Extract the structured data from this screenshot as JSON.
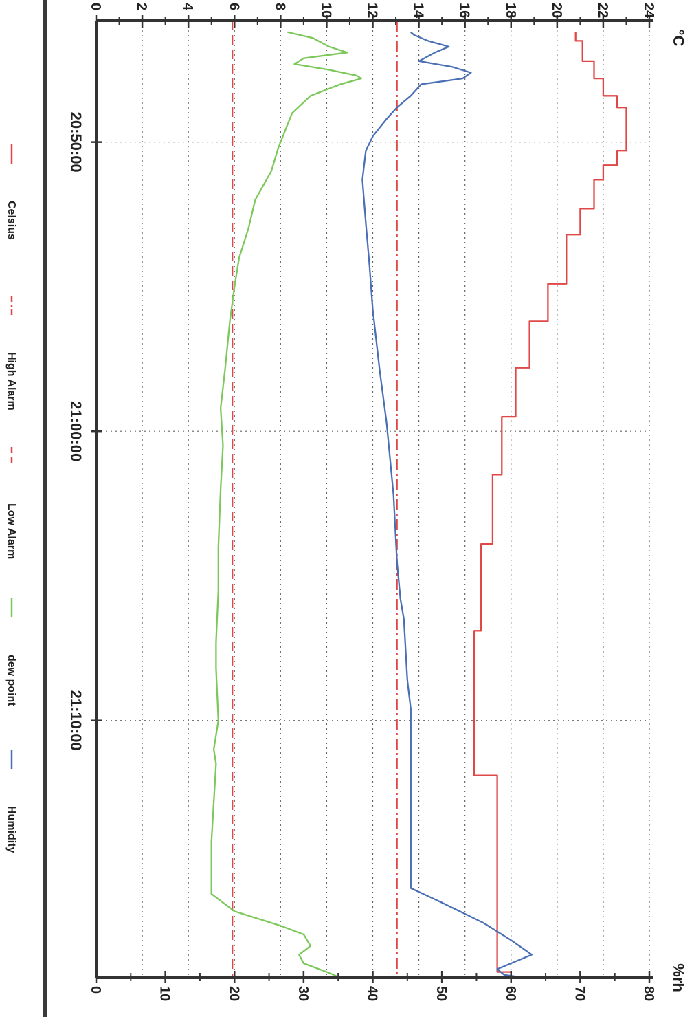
{
  "chart_data": {
    "type": "line",
    "title": "",
    "orientation": "rotated-90-clockwise",
    "x_axis": {
      "type": "time",
      "ticks": [
        "20:50:00",
        "21:00:00",
        "21:10:00"
      ],
      "range_minutes": [
        -4.2,
        28.9
      ],
      "grid": true
    },
    "y_left": {
      "unit": "°C",
      "range": [
        0,
        24
      ],
      "ticks": [
        0,
        2,
        4,
        6,
        8,
        10,
        12,
        14,
        16,
        18,
        20,
        22,
        24
      ],
      "grid": true
    },
    "y_right": {
      "unit": "%rh",
      "range": [
        0,
        80
      ],
      "ticks": [
        0,
        10,
        20,
        30,
        40,
        50,
        60,
        70,
        80
      ]
    },
    "legend": {
      "placement": "bottom",
      "items": [
        {
          "label": "Celsius",
          "style": "solid",
          "color": "#e04848"
        },
        {
          "label": "High Alarm",
          "style": "dash-dot",
          "color": "#e04848"
        },
        {
          "label": "Low Alarm",
          "style": "dashed",
          "color": "#e04848"
        },
        {
          "label": "dew point",
          "style": "solid",
          "color": "#7cc85a"
        },
        {
          "label": "Humidity",
          "style": "solid",
          "color": "#4a6fb5"
        }
      ]
    },
    "reference_lines": [
      {
        "name": "High Alarm",
        "axis": "right",
        "value": 43.5
      },
      {
        "name": "Low Alarm",
        "axis": "right",
        "value": 19.7
      }
    ],
    "series": [
      {
        "name": "Celsius",
        "axis": "left",
        "step": true,
        "minutes": [
          -3.8,
          -3.5,
          -2.8,
          -2.2,
          -1.6,
          -1.2,
          -0.5,
          0.3,
          0.8,
          1.3,
          2.3,
          3.2,
          4.9,
          6.2,
          7.8,
          9.5,
          11.5,
          13.9,
          16.9,
          20.7,
          21.9,
          28.7
        ],
        "celsius": [
          20.8,
          21.1,
          21.6,
          22.0,
          22.6,
          23.0,
          23.0,
          22.6,
          22.0,
          21.6,
          21.0,
          20.4,
          19.6,
          18.8,
          18.2,
          17.6,
          17.2,
          16.7,
          16.4,
          16.4,
          17.4,
          18.0
        ]
      },
      {
        "name": "Humidity",
        "axis": "right",
        "minutes": [
          -3.8,
          -3.7,
          -3.5,
          -3.3,
          -3.1,
          -2.8,
          -2.6,
          -2.4,
          -2.2,
          -2.0,
          -1.6,
          -1.2,
          -0.8,
          -0.2,
          0.3,
          1.3,
          2.8,
          4.2,
          5.8,
          7.9,
          9.7,
          12.2,
          14.5,
          15.8,
          16.5,
          18.6,
          19.6,
          21.4,
          25.8,
          26.3,
          27.0,
          27.6,
          28.1,
          28.4,
          28.6,
          28.8,
          28.9
        ],
        "percent_rh": [
          45.5,
          46.0,
          48.0,
          51.0,
          49.0,
          46.7,
          51.5,
          54.2,
          53.0,
          47.0,
          45.5,
          43.5,
          42.0,
          40.0,
          39.0,
          38.5,
          39.0,
          39.5,
          40.0,
          41.0,
          42.0,
          43.0,
          43.5,
          44.0,
          44.5,
          45.0,
          45.5,
          45.5,
          45.5,
          50.0,
          56.0,
          60.0,
          63.0,
          60.0,
          58.0,
          59.0,
          62.0
        ]
      },
      {
        "name": "dew point",
        "axis": "left",
        "minutes": [
          -3.8,
          -3.6,
          -3.3,
          -3.1,
          -2.9,
          -2.7,
          -2.5,
          -2.3,
          -2.2,
          -2.0,
          -1.6,
          -1.0,
          -0.4,
          0.2,
          1.0,
          2.0,
          3.0,
          4.0,
          5.0,
          6.2,
          7.8,
          9.2,
          10.5,
          12.0,
          14.0,
          15.5,
          17.3,
          18.2,
          20.0,
          21.0,
          21.5,
          24.2,
          25.5,
          26.0,
          26.6,
          27.1,
          27.4,
          27.8,
          28.1,
          28.4,
          28.7,
          28.9
        ],
        "celsius": [
          8.3,
          9.4,
          10.1,
          10.9,
          9.0,
          8.6,
          10.1,
          11.3,
          11.5,
          10.6,
          9.3,
          8.5,
          8.2,
          7.9,
          7.6,
          6.9,
          6.6,
          6.2,
          6.0,
          5.8,
          5.6,
          5.4,
          5.5,
          5.4,
          5.3,
          5.3,
          5.2,
          5.2,
          5.3,
          5.1,
          5.2,
          5.0,
          5.0,
          5.0,
          6.0,
          8.0,
          9.0,
          9.3,
          8.8,
          9.0,
          10.0,
          10.6
        ]
      }
    ]
  }
}
